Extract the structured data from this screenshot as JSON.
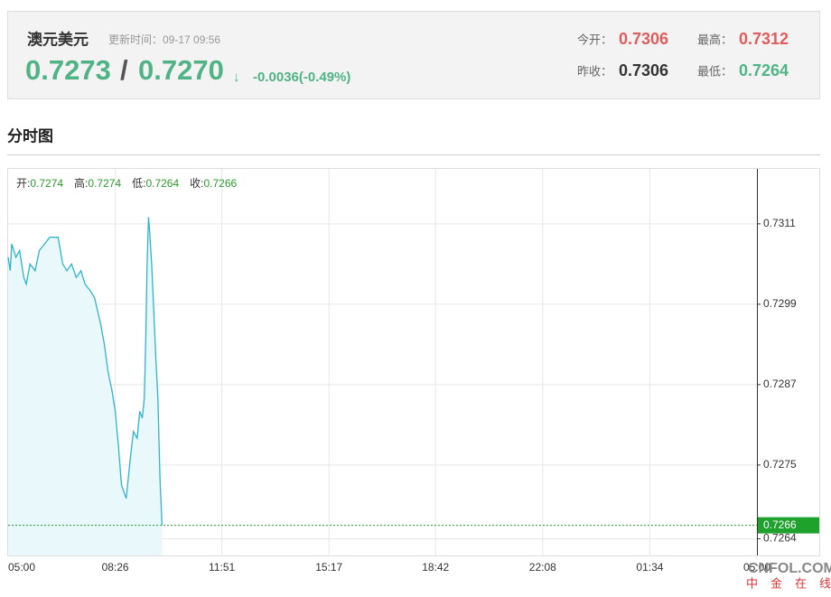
{
  "header": {
    "title": "澳元美元",
    "update_time": "更新时间：09-17 09:56",
    "bid": "0.7273",
    "separator": "/",
    "ask": "0.7270",
    "arrow": "↓",
    "change": "-0.0036(-0.49%)",
    "stats": [
      {
        "label": "今开：",
        "value": "0.7306",
        "color": "#e05c5c"
      },
      {
        "label": "最高：",
        "value": "0.7312",
        "color": "#e05c5c"
      },
      {
        "label": "昨收：",
        "value": "0.7306",
        "color": "#333333"
      },
      {
        "label": "最低：",
        "value": "0.7264",
        "color": "#4fb386"
      }
    ]
  },
  "section_title": "分时图",
  "watermark": {
    "brand": "CNFOL.COM",
    "name": "中金在线"
  },
  "chart_data": {
    "type": "line",
    "ohlc": [
      {
        "label": "开:",
        "value": 0.7274
      },
      {
        "label": "高:",
        "value": 0.7274
      },
      {
        "label": "低:",
        "value": 0.7264
      },
      {
        "label": "收:",
        "value": 0.7266
      }
    ],
    "x": [
      "05:00",
      "05:04",
      "05:07",
      "05:15",
      "05:22",
      "05:30",
      "05:35",
      "05:42",
      "05:52",
      "06:00",
      "06:10",
      "06:20",
      "06:36",
      "06:45",
      "06:53",
      "07:02",
      "07:11",
      "07:20",
      "07:28",
      "07:38",
      "07:46",
      "07:58",
      "08:05",
      "08:12",
      "08:20",
      "08:26",
      "08:32",
      "08:38",
      "08:47",
      "08:55",
      "09:01",
      "09:08",
      "09:13",
      "09:18",
      "09:22",
      "09:25",
      "09:27",
      "09:30",
      "09:32",
      "09:36",
      "09:39",
      "09:44",
      "09:48",
      "09:52",
      "09:56"
    ],
    "series": [
      {
        "name": "澳元美元",
        "color": "#2fb3cf",
        "values": [
          0.7306,
          0.7304,
          0.7308,
          0.7306,
          0.7307,
          0.7303,
          0.7302,
          0.7305,
          0.7304,
          0.7307,
          0.7308,
          0.7309,
          0.7309,
          0.7305,
          0.7304,
          0.7305,
          0.7303,
          0.7304,
          0.7302,
          0.7301,
          0.73,
          0.7296,
          0.7293,
          0.7289,
          0.7286,
          0.7283,
          0.7278,
          0.7272,
          0.727,
          0.7276,
          0.728,
          0.7279,
          0.7283,
          0.7282,
          0.7285,
          0.7295,
          0.7304,
          0.7312,
          0.731,
          0.7305,
          0.73,
          0.7291,
          0.7285,
          0.7273,
          0.7266
        ]
      }
    ],
    "last_value": 0.7266,
    "ylim": [
      0.72615,
      0.73192
    ],
    "yticks": [
      0.7311,
      0.7299,
      0.7287,
      0.7275,
      0.7264
    ],
    "xticks": [
      "05:00",
      "08:26",
      "11:51",
      "15:17",
      "18:42",
      "22:08",
      "01:34",
      "05:00"
    ],
    "grid": true,
    "area_color": "#e9f8fa",
    "last_color": "#1fa12e"
  }
}
